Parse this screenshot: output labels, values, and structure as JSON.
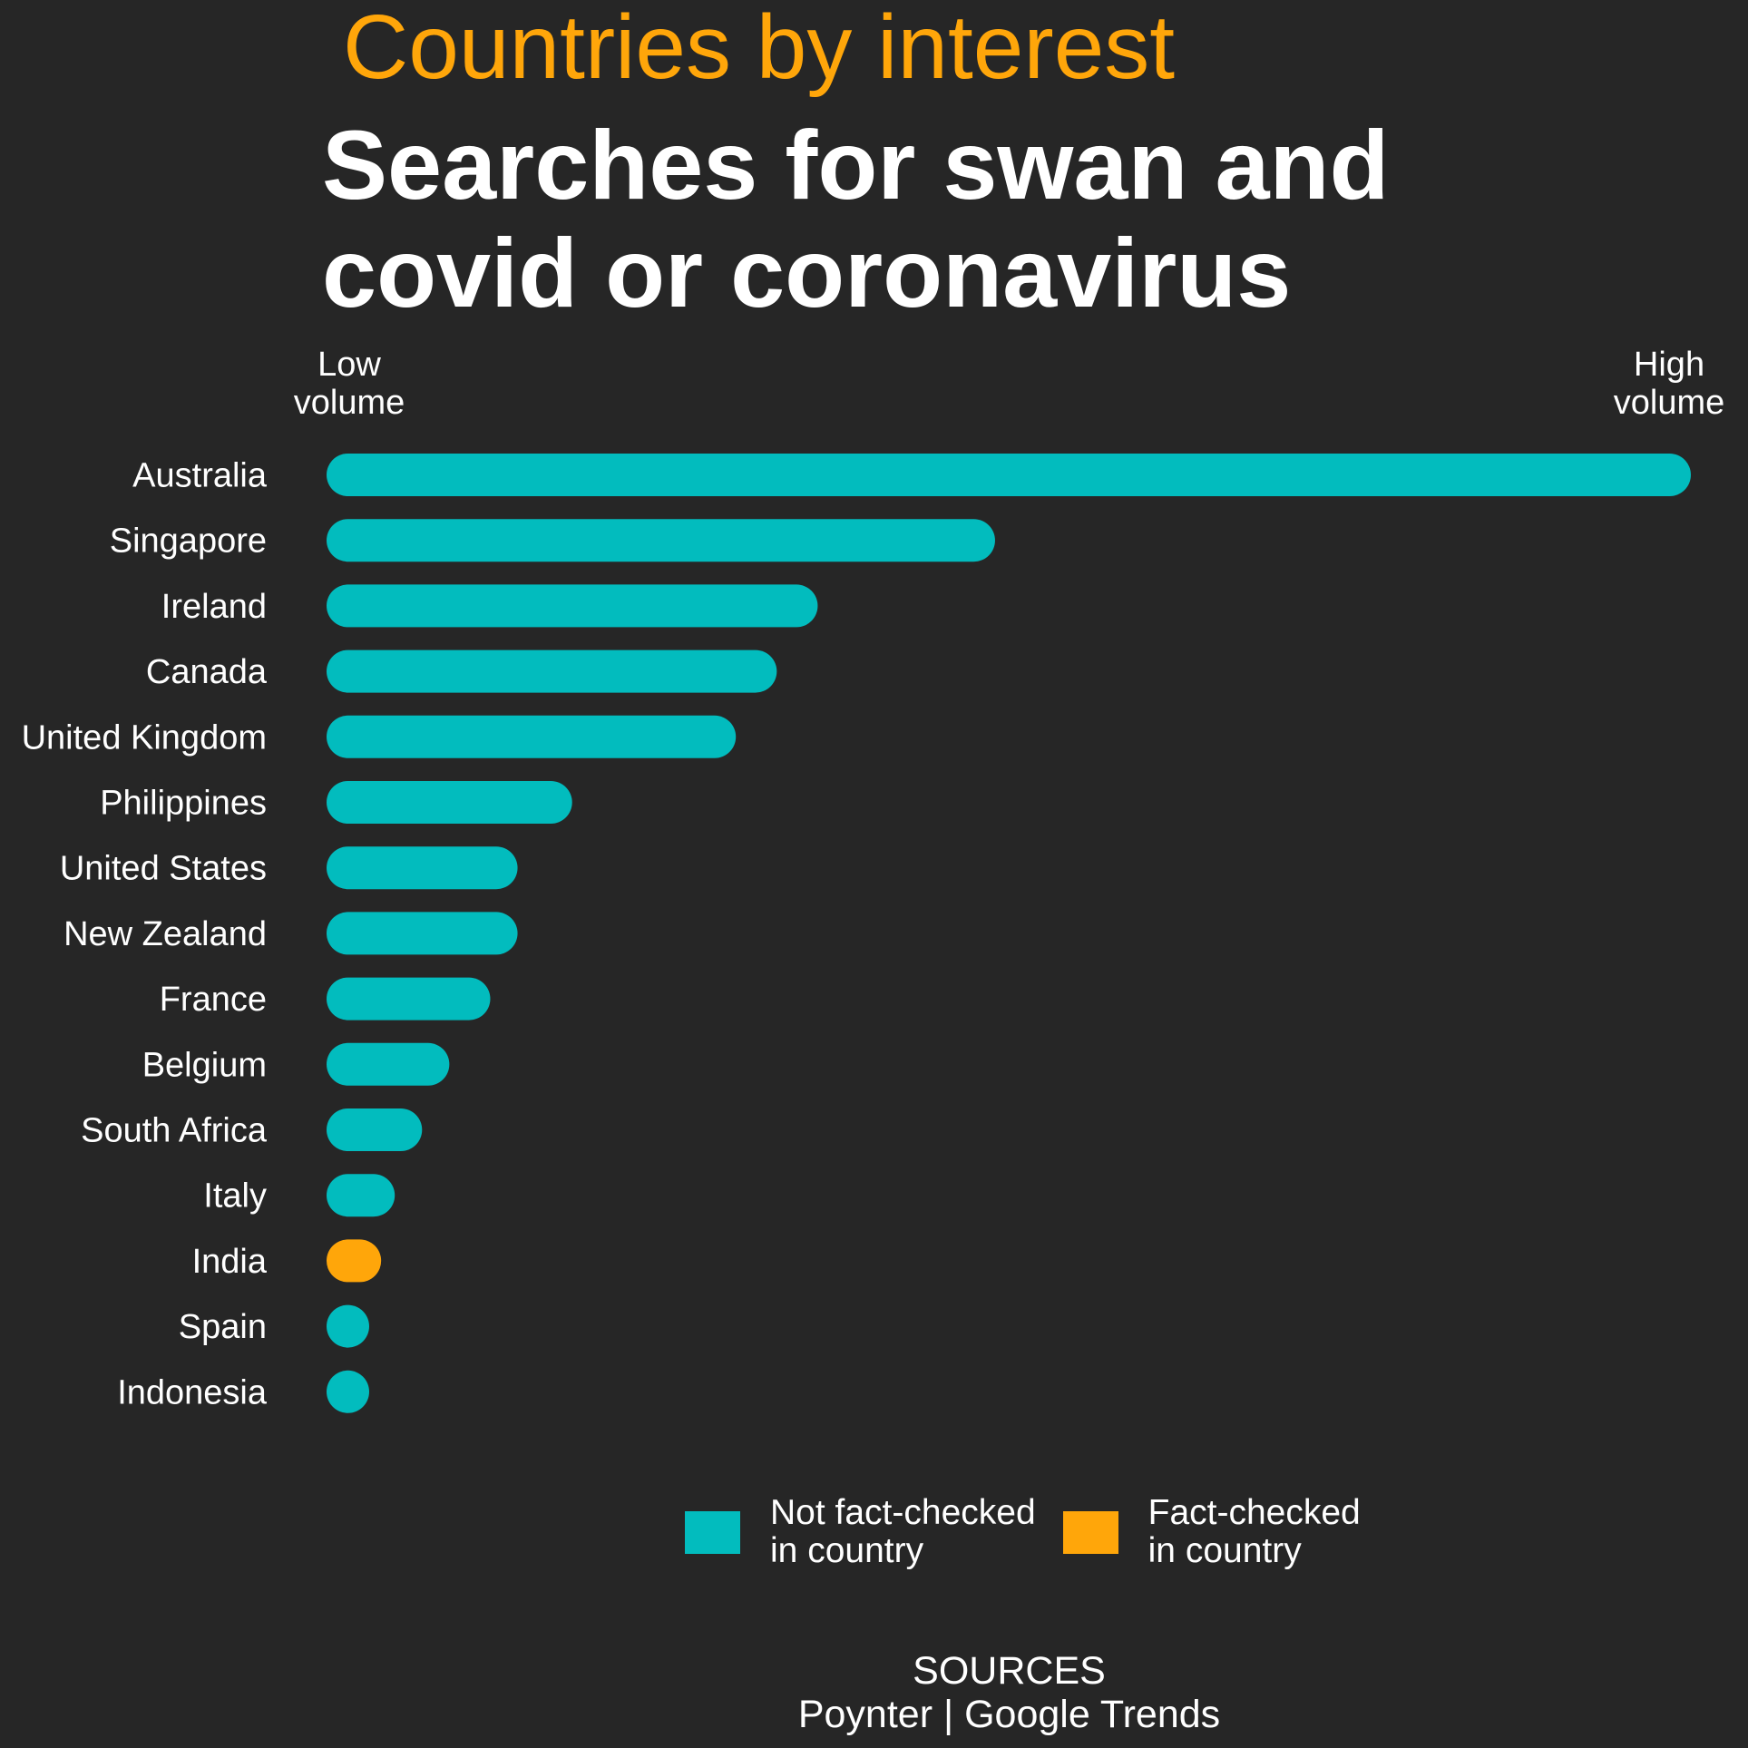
{
  "header": {
    "kicker": "Countries by interest",
    "title": "Searches for swan and\ncovid or coronavirus"
  },
  "colors": {
    "background": "#262626",
    "kicker": "#FFA60A",
    "not_fact_checked": "#02BCBE",
    "fact_checked": "#FFA60A",
    "text": "#FFFFFF"
  },
  "axis": {
    "low_label": "Low\nvolume",
    "high_label": "High\nvolume"
  },
  "chart_data": {
    "type": "bar",
    "orientation": "horizontal",
    "categories": [
      "Australia",
      "Singapore",
      "Ireland",
      "Canada",
      "United Kingdom",
      "Philippines",
      "United States",
      "New Zealand",
      "France",
      "Belgium",
      "South Africa",
      "Italy",
      "India",
      "Spain",
      "Indonesia"
    ],
    "values": [
      100,
      49,
      36,
      33,
      30,
      18,
      14,
      14,
      12,
      9,
      7,
      5,
      4,
      3,
      3
    ],
    "fact_checked": [
      false,
      false,
      false,
      false,
      false,
      false,
      false,
      false,
      false,
      false,
      false,
      false,
      true,
      false,
      false
    ],
    "title": "Searches for swan and covid or coronavirus",
    "xlabel": "",
    "ylabel": "",
    "xlim": [
      0,
      100
    ],
    "grid": false,
    "legend_position": "bottom",
    "legend": [
      {
        "label": "Not fact-checked\nin country",
        "color": "#02BCBE"
      },
      {
        "label": "Fact-checked\nin country",
        "color": "#FFA60A"
      }
    ]
  },
  "sources": {
    "heading": "SOURCES",
    "text": "Poynter | Google Trends"
  }
}
